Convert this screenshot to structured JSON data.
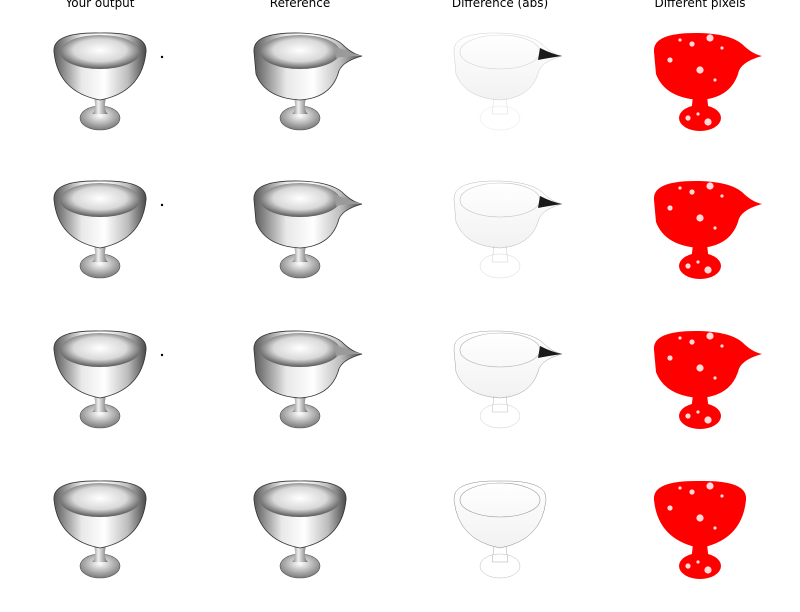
{
  "columns": [
    {
      "title": "Your output"
    },
    {
      "title": "Reference"
    },
    {
      "title": "Difference (abs)"
    },
    {
      "title": "Different pixels"
    }
  ],
  "rows": [
    {
      "row_index": 1,
      "has_spout_in_output": false,
      "output_has_dot": true
    },
    {
      "row_index": 2,
      "has_spout_in_output": false,
      "output_has_dot": true
    },
    {
      "row_index": 3,
      "has_spout_in_output": false,
      "output_has_dot": true
    },
    {
      "row_index": 4,
      "has_spout_in_output": false,
      "output_has_dot": false,
      "reference_has_spout": false
    }
  ],
  "colors": {
    "diff_pixels": "#ff0000",
    "background": "#ffffff",
    "cup_dark": "#3a3a3a",
    "cup_light": "#f4f4f4"
  }
}
